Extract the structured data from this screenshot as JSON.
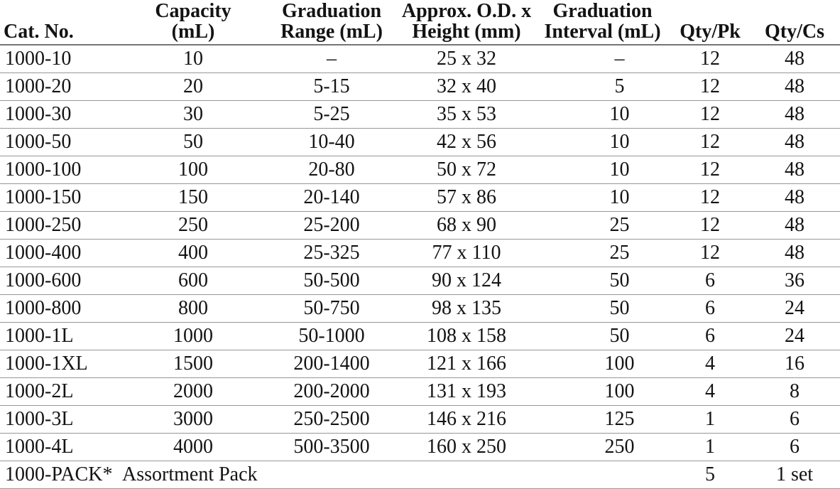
{
  "table": {
    "headers": [
      {
        "name": "cat-no",
        "text": "Cat. No."
      },
      {
        "name": "capacity",
        "text": "Capacity\n(mL)"
      },
      {
        "name": "grad-range",
        "text": "Graduation\nRange (mL)"
      },
      {
        "name": "od-height",
        "text": "Approx. O.D. x\nHeight (mm)"
      },
      {
        "name": "grad-interval",
        "text": "Graduation\nInterval (mL)"
      },
      {
        "name": "qty-pk",
        "text": "Qty/Pk"
      },
      {
        "name": "qty-cs",
        "text": "Qty/Cs"
      }
    ],
    "rows": [
      {
        "cells": [
          {
            "name": "cat-no",
            "text": "1000-10"
          },
          {
            "name": "capacity",
            "text": "10"
          },
          {
            "name": "grad-range",
            "text": "–"
          },
          {
            "name": "od-height",
            "text": "25 x 32"
          },
          {
            "name": "grad-interval",
            "text": "–"
          },
          {
            "name": "qty-pk",
            "text": "12"
          },
          {
            "name": "qty-cs",
            "text": "48"
          }
        ]
      },
      {
        "cells": [
          {
            "name": "cat-no",
            "text": "1000-20"
          },
          {
            "name": "capacity",
            "text": "20"
          },
          {
            "name": "grad-range",
            "text": "5-15"
          },
          {
            "name": "od-height",
            "text": "32 x 40"
          },
          {
            "name": "grad-interval",
            "text": "5"
          },
          {
            "name": "qty-pk",
            "text": "12"
          },
          {
            "name": "qty-cs",
            "text": "48"
          }
        ]
      },
      {
        "cells": [
          {
            "name": "cat-no",
            "text": "1000-30"
          },
          {
            "name": "capacity",
            "text": "30"
          },
          {
            "name": "grad-range",
            "text": "5-25"
          },
          {
            "name": "od-height",
            "text": "35 x 53"
          },
          {
            "name": "grad-interval",
            "text": "10"
          },
          {
            "name": "qty-pk",
            "text": "12"
          },
          {
            "name": "qty-cs",
            "text": "48"
          }
        ]
      },
      {
        "cells": [
          {
            "name": "cat-no",
            "text": "1000-50"
          },
          {
            "name": "capacity",
            "text": "50"
          },
          {
            "name": "grad-range",
            "text": "10-40"
          },
          {
            "name": "od-height",
            "text": "42 x 56"
          },
          {
            "name": "grad-interval",
            "text": "10"
          },
          {
            "name": "qty-pk",
            "text": "12"
          },
          {
            "name": "qty-cs",
            "text": "48"
          }
        ]
      },
      {
        "cells": [
          {
            "name": "cat-no",
            "text": "1000-100"
          },
          {
            "name": "capacity",
            "text": "100"
          },
          {
            "name": "grad-range",
            "text": "20-80"
          },
          {
            "name": "od-height",
            "text": "50 x 72"
          },
          {
            "name": "grad-interval",
            "text": "10"
          },
          {
            "name": "qty-pk",
            "text": "12"
          },
          {
            "name": "qty-cs",
            "text": "48"
          }
        ]
      },
      {
        "cells": [
          {
            "name": "cat-no",
            "text": "1000-150"
          },
          {
            "name": "capacity",
            "text": "150"
          },
          {
            "name": "grad-range",
            "text": "20-140"
          },
          {
            "name": "od-height",
            "text": "57 x 86"
          },
          {
            "name": "grad-interval",
            "text": "10"
          },
          {
            "name": "qty-pk",
            "text": "12"
          },
          {
            "name": "qty-cs",
            "text": "48"
          }
        ]
      },
      {
        "cells": [
          {
            "name": "cat-no",
            "text": "1000-250"
          },
          {
            "name": "capacity",
            "text": "250"
          },
          {
            "name": "grad-range",
            "text": "25-200"
          },
          {
            "name": "od-height",
            "text": "68 x 90"
          },
          {
            "name": "grad-interval",
            "text": "25"
          },
          {
            "name": "qty-pk",
            "text": "12"
          },
          {
            "name": "qty-cs",
            "text": "48"
          }
        ]
      },
      {
        "cells": [
          {
            "name": "cat-no",
            "text": "1000-400"
          },
          {
            "name": "capacity",
            "text": "400"
          },
          {
            "name": "grad-range",
            "text": "25-325"
          },
          {
            "name": "od-height",
            "text": "77 x 110"
          },
          {
            "name": "grad-interval",
            "text": "25"
          },
          {
            "name": "qty-pk",
            "text": "12"
          },
          {
            "name": "qty-cs",
            "text": "48"
          }
        ]
      },
      {
        "cells": [
          {
            "name": "cat-no",
            "text": "1000-600"
          },
          {
            "name": "capacity",
            "text": "600"
          },
          {
            "name": "grad-range",
            "text": "50-500"
          },
          {
            "name": "od-height",
            "text": "90 x 124"
          },
          {
            "name": "grad-interval",
            "text": "50"
          },
          {
            "name": "qty-pk",
            "text": "6"
          },
          {
            "name": "qty-cs",
            "text": "36"
          }
        ]
      },
      {
        "cells": [
          {
            "name": "cat-no",
            "text": "1000-800"
          },
          {
            "name": "capacity",
            "text": "800"
          },
          {
            "name": "grad-range",
            "text": "50-750"
          },
          {
            "name": "od-height",
            "text": "98 x 135"
          },
          {
            "name": "grad-interval",
            "text": "50"
          },
          {
            "name": "qty-pk",
            "text": "6"
          },
          {
            "name": "qty-cs",
            "text": "24"
          }
        ]
      },
      {
        "cells": [
          {
            "name": "cat-no",
            "text": "1000-1L"
          },
          {
            "name": "capacity",
            "text": "1000"
          },
          {
            "name": "grad-range",
            "text": "50-1000"
          },
          {
            "name": "od-height",
            "text": "108 x 158"
          },
          {
            "name": "grad-interval",
            "text": "50"
          },
          {
            "name": "qty-pk",
            "text": "6"
          },
          {
            "name": "qty-cs",
            "text": "24"
          }
        ]
      },
      {
        "cells": [
          {
            "name": "cat-no",
            "text": "1000-1XL"
          },
          {
            "name": "capacity",
            "text": "1500"
          },
          {
            "name": "grad-range",
            "text": "200-1400"
          },
          {
            "name": "od-height",
            "text": "121 x 166"
          },
          {
            "name": "grad-interval",
            "text": "100"
          },
          {
            "name": "qty-pk",
            "text": "4"
          },
          {
            "name": "qty-cs",
            "text": "16"
          }
        ]
      },
      {
        "cells": [
          {
            "name": "cat-no",
            "text": "1000-2L"
          },
          {
            "name": "capacity",
            "text": "2000"
          },
          {
            "name": "grad-range",
            "text": "200-2000"
          },
          {
            "name": "od-height",
            "text": "131 x 193"
          },
          {
            "name": "grad-interval",
            "text": "100"
          },
          {
            "name": "qty-pk",
            "text": "4"
          },
          {
            "name": "qty-cs",
            "text": "8"
          }
        ]
      },
      {
        "cells": [
          {
            "name": "cat-no",
            "text": "1000-3L"
          },
          {
            "name": "capacity",
            "text": "3000"
          },
          {
            "name": "grad-range",
            "text": "250-2500"
          },
          {
            "name": "od-height",
            "text": "146 x 216"
          },
          {
            "name": "grad-interval",
            "text": "125"
          },
          {
            "name": "qty-pk",
            "text": "1"
          },
          {
            "name": "qty-cs",
            "text": "6"
          }
        ]
      },
      {
        "cells": [
          {
            "name": "cat-no",
            "text": "1000-4L"
          },
          {
            "name": "capacity",
            "text": "4000"
          },
          {
            "name": "grad-range",
            "text": "500-3500"
          },
          {
            "name": "od-height",
            "text": "160 x 250"
          },
          {
            "name": "grad-interval",
            "text": "250"
          },
          {
            "name": "qty-pk",
            "text": "1"
          },
          {
            "name": "qty-cs",
            "text": "6"
          }
        ]
      },
      {
        "cells": [
          {
            "name": "cat-no",
            "text": "1000-PACK*"
          },
          {
            "name": "capacity",
            "text": "Assortment Pack",
            "colspan": 4,
            "align": "left"
          },
          {
            "name": "qty-pk",
            "text": "5"
          },
          {
            "name": "qty-cs",
            "text": "1 set"
          }
        ]
      }
    ]
  }
}
